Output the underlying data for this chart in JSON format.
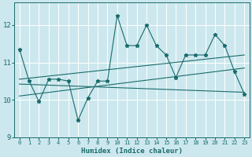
{
  "xlabel": "Humidex (Indice chaleur)",
  "xlim": [
    -0.5,
    23.5
  ],
  "ylim": [
    9,
    12.6
  ],
  "yticks": [
    9,
    10,
    11,
    12
  ],
  "xticks": [
    0,
    1,
    2,
    3,
    4,
    5,
    6,
    7,
    8,
    9,
    10,
    11,
    12,
    13,
    14,
    15,
    16,
    17,
    18,
    19,
    20,
    21,
    22,
    23
  ],
  "bg_color": "#cce8ee",
  "line_color": "#1a6b6b",
  "grid_color": "#ffffff",
  "series1_x": [
    0,
    1,
    2,
    3,
    4,
    5,
    6,
    7,
    8,
    9,
    10,
    11,
    12,
    13,
    14,
    15,
    16,
    17,
    18,
    19,
    20,
    21,
    22,
    23
  ],
  "series1_y": [
    11.35,
    10.5,
    9.95,
    10.55,
    10.55,
    10.5,
    9.45,
    10.05,
    10.5,
    10.5,
    12.25,
    11.45,
    11.45,
    12.0,
    11.45,
    11.2,
    10.6,
    11.2,
    11.2,
    11.2,
    11.75,
    11.45,
    10.75,
    10.15
  ],
  "series2_x": [
    0,
    23
  ],
  "series2_y": [
    10.1,
    10.85
  ],
  "series3_x": [
    0,
    23
  ],
  "series3_y": [
    10.42,
    10.2
  ],
  "series4_x": [
    0,
    23
  ],
  "series4_y": [
    10.55,
    11.2
  ]
}
